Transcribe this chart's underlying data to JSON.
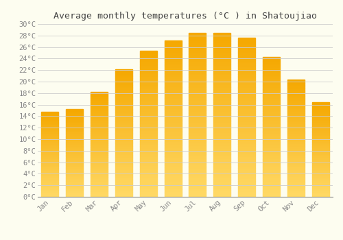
{
  "title": "Average monthly temperatures (°C ) in Shatoujiao",
  "months": [
    "Jan",
    "Feb",
    "Mar",
    "Apr",
    "May",
    "Jun",
    "Jul",
    "Aug",
    "Sep",
    "Oct",
    "Nov",
    "Dec"
  ],
  "values": [
    14.8,
    15.2,
    18.2,
    22.1,
    25.3,
    27.2,
    28.4,
    28.4,
    27.6,
    24.3,
    20.4,
    16.4
  ],
  "bar_color_top": "#F5A800",
  "bar_color_bottom": "#FFD966",
  "background_color": "#FDFDF0",
  "grid_color": "#CCCCCC",
  "ylim": [
    0,
    30
  ],
  "yticks": [
    0,
    2,
    4,
    6,
    8,
    10,
    12,
    14,
    16,
    18,
    20,
    22,
    24,
    26,
    28,
    30
  ],
  "title_fontsize": 9.5,
  "tick_fontsize": 7.5,
  "title_color": "#444444",
  "tick_color": "#888888",
  "bar_width": 0.7
}
